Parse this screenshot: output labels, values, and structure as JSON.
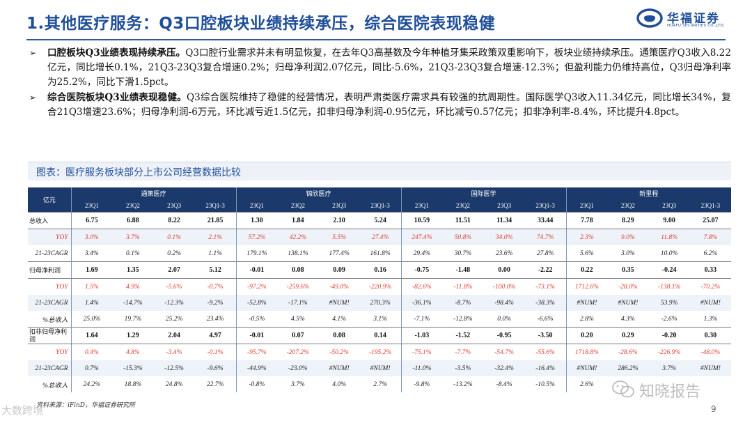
{
  "header": {
    "title": "1.其他医疗服务：Q3口腔板块业绩持续承压，综合医院表现稳健",
    "logo_cn": "华福证券",
    "logo_en": "HUAFU SECURITIES CO.,LTD."
  },
  "bullets": [
    {
      "marker": "➢",
      "bold": "口腔板块Q3业绩表现持续承压。",
      "text": "Q3口腔行业需求并未有明显恢复，在去年Q3高基数及今年种植牙集采政策双重影响下，板块业绩持续承压。通策医疗Q3收入8.22亿元，同比增长0.1%，21Q3-23Q3复合增速0.2%；归母净利润2.07亿元，同比-5.6%，21Q3-23Q3复合增速-12.3%；但盈利能力仍维持高位，Q3归母净利率为25.2%，同比下滑1.5pct。"
    },
    {
      "marker": "➢",
      "bold": "综合医院板块Q3业绩表现稳健。",
      "text": "Q3综合医院维持了稳健的经营情况，表明严肃类医疗需求具有较强的抗周期性。国际医学Q3收入11.34亿元，同比增长34%，复合21Q3增速23.6%；归母净利润-6万元，环比减亏近1.5亿元，扣非归母净利润-0.95亿元，环比减亏0.57亿元；扣非净利率-8.4%，环比提升4.8pct。"
    }
  ],
  "caption": "图表：医疗服务板块部分上市公司经营数据比较",
  "table": {
    "corner": "亿元",
    "groups": [
      "通策医疗",
      "锦欣医疗",
      "国际医学",
      "新里程"
    ],
    "periods": [
      "23Q1",
      "23Q2",
      "23Q3",
      "23Q1-3"
    ],
    "rows": [
      {
        "label": "总收入",
        "kind": "main",
        "values": [
          "6.75",
          "6.88",
          "8.22",
          "21.85",
          "1.30",
          "1.84",
          "2.10",
          "5.24",
          "10.59",
          "11.51",
          "11.34",
          "33.44",
          "7.78",
          "8.29",
          "9.00",
          "25.07"
        ]
      },
      {
        "label": "YOY",
        "kind": "yoy",
        "values": [
          "3.0%",
          "3.7%",
          "0.1%",
          "2.1%",
          "57.2%",
          "42.2%",
          "5.5%",
          "27.4%",
          "247.4%",
          "50.8%",
          "34.0%",
          "74.7%",
          "2.3%",
          "9.0%",
          "11.8%",
          "7.8%"
        ]
      },
      {
        "label": "21-23CAGR",
        "kind": "sub",
        "values": [
          "3.4%",
          "0.1%",
          "0.2%",
          "1.1%",
          "179.1%",
          "138.1%",
          "177.4%",
          "161.8%",
          "29.4%",
          "30.7%",
          "23.6%",
          "27.8%",
          "5.6%",
          "3.0%",
          "10.0%",
          "6.2%"
        ]
      },
      {
        "label": "归母净利润",
        "kind": "main",
        "values": [
          "1.69",
          "1.35",
          "2.07",
          "5.12",
          "-0.01",
          "0.08",
          "0.09",
          "0.16",
          "-0.75",
          "-1.48",
          "0.00",
          "-2.22",
          "0.22",
          "0.35",
          "-0.24",
          "0.33"
        ]
      },
      {
        "label": "YOY",
        "kind": "yoy",
        "values": [
          "1.5%",
          "4.9%",
          "-5.6%",
          "-0.7%",
          "-97.2%",
          "-259.6%",
          "-49.0%",
          "-220.9%",
          "-82.6%",
          "-11.8%",
          "-100.0%",
          "-73.1%",
          "1712.6%",
          "-28.0%",
          "-138.1%",
          "-70.2%"
        ]
      },
      {
        "label": "21-23CAGR",
        "kind": "sub",
        "values": [
          "1.4%",
          "-14.7%",
          "-12.3%",
          "-9.2%",
          "-52.8%",
          "-17.1%",
          "#NUM!",
          "270.3%",
          "-36.1%",
          "-8.7%",
          "-98.4%",
          "-38.3%",
          "#NUM!",
          "#NUM!",
          "53.9%",
          "#NUM!"
        ]
      },
      {
        "label": "%总收入",
        "kind": "sub",
        "values": [
          "25.0%",
          "19.7%",
          "25.2%",
          "23.4%",
          "-0.5%",
          "4.5%",
          "4.1%",
          "3.1%",
          "-7.1%",
          "-12.8%",
          "0.0%",
          "-6.6%",
          "2.8%",
          "4.3%",
          "-2.6%",
          "1.3%"
        ]
      },
      {
        "label": "扣非归母净利润",
        "kind": "main2",
        "values": [
          "1.64",
          "1.29",
          "2.04",
          "4.97",
          "-0.01",
          "0.07",
          "0.08",
          "0.14",
          "-1.03",
          "-1.52",
          "-0.95",
          "-3.50",
          "0.20",
          "0.29",
          "-0.20",
          "0.30"
        ]
      },
      {
        "label": "YOY",
        "kind": "yoy",
        "values": [
          "0.4%",
          "4.8%",
          "-3.4%",
          "-0.1%",
          "-95.7%",
          "-207.2%",
          "-50.2%",
          "-195.2%",
          "-75.1%",
          "-7.7%",
          "-54.7%",
          "-55.6%",
          "1718.8%",
          "-28.6%",
          "-226.9%",
          "-48.0%"
        ]
      },
      {
        "label": "21-23CAGR",
        "kind": "sub",
        "values": [
          "0.7%",
          "-15.3%",
          "-12.5%",
          "-9.6%",
          "-44.9%",
          "-23.0%",
          "#NUM!",
          "#NUM!",
          "-11.0%",
          "-3.5%",
          "-32.4%",
          "-16.4%",
          "#NUM!",
          "286.2%",
          "3.7%",
          "#NUM!"
        ]
      },
      {
        "label": "%总收入",
        "kind": "sub",
        "values": [
          "24.2%",
          "18.8%",
          "24.8%",
          "22.7%",
          "-0.8%",
          "3.7%",
          "4.0%",
          "2.7%",
          "-9.8%",
          "-13.2%",
          "-8.4%",
          "-10.5%",
          "2.6%",
          "",
          "",
          ""
        ]
      }
    ]
  },
  "source": "资料来源：iFinD，华福证券研究所",
  "watermark_left": "大数跨境",
  "watermark_right": "知晓报告",
  "page_number": "9",
  "colors": {
    "accent": "#1f4e9a",
    "header_bg": "#1b3a6b",
    "yoy": "#e23b2e"
  }
}
